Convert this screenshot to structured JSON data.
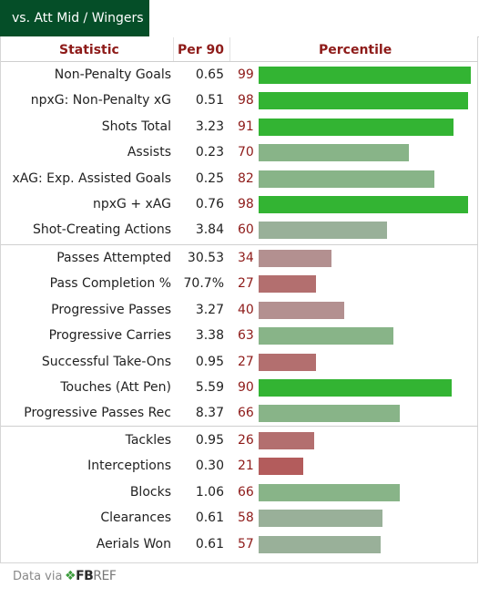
{
  "tab": {
    "label": "vs. Att Mid / Wingers"
  },
  "headers": {
    "statistic": "Statistic",
    "per90": "Per 90",
    "percentile": "Percentile"
  },
  "colors": {
    "top_green": "#33b433",
    "mid_green": "#88b488",
    "light_green": "#99b099",
    "pink": "#b39090",
    "red": "#b36f6f",
    "deep_red": "#b35c5c",
    "header_red": "#8e1b19",
    "tab_green": "#054e28"
  },
  "groups": [
    {
      "rows": [
        {
          "stat": "Non-Penalty Goals",
          "per90": "0.65",
          "pct": "99"
        },
        {
          "stat": "npxG: Non-Penalty xG",
          "per90": "0.51",
          "pct": "98"
        },
        {
          "stat": "Shots Total",
          "per90": "3.23",
          "pct": "91"
        },
        {
          "stat": "Assists",
          "per90": "0.23",
          "pct": "70"
        },
        {
          "stat": "xAG: Exp. Assisted Goals",
          "per90": "0.25",
          "pct": "82"
        },
        {
          "stat": "npxG + xAG",
          "per90": "0.76",
          "pct": "98"
        },
        {
          "stat": "Shot-Creating Actions",
          "per90": "3.84",
          "pct": "60"
        }
      ]
    },
    {
      "rows": [
        {
          "stat": "Passes Attempted",
          "per90": "30.53",
          "pct": "34"
        },
        {
          "stat": "Pass Completion %",
          "per90": "70.7%",
          "pct": "27"
        },
        {
          "stat": "Progressive Passes",
          "per90": "3.27",
          "pct": "40"
        },
        {
          "stat": "Progressive Carries",
          "per90": "3.38",
          "pct": "63"
        },
        {
          "stat": "Successful Take-Ons",
          "per90": "0.95",
          "pct": "27"
        },
        {
          "stat": "Touches (Att Pen)",
          "per90": "5.59",
          "pct": "90"
        },
        {
          "stat": "Progressive Passes Rec",
          "per90": "8.37",
          "pct": "66"
        }
      ]
    },
    {
      "rows": [
        {
          "stat": "Tackles",
          "per90": "0.95",
          "pct": "26"
        },
        {
          "stat": "Interceptions",
          "per90": "0.30",
          "pct": "21"
        },
        {
          "stat": "Blocks",
          "per90": "1.06",
          "pct": "66"
        },
        {
          "stat": "Clearances",
          "per90": "0.61",
          "pct": "58"
        },
        {
          "stat": "Aerials Won",
          "per90": "0.61",
          "pct": "57"
        }
      ]
    }
  ],
  "footer": {
    "text": "Data via",
    "logo_fb": "FB",
    "logo_ref": "REF"
  }
}
